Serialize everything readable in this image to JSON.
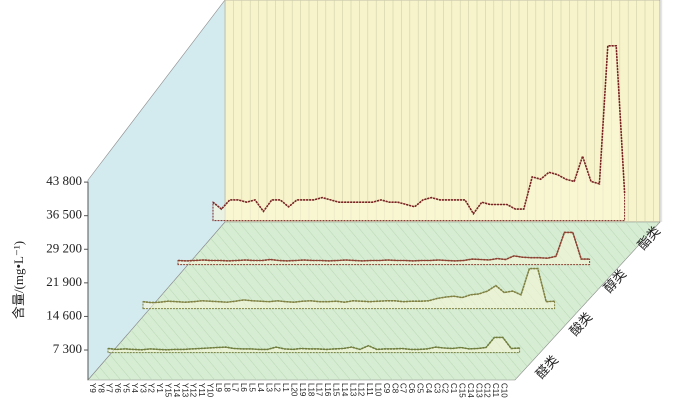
{
  "chart_data": {
    "type": "line3d",
    "ylabel": "含量/(mg•L⁻¹)",
    "ylim": [
      0,
      43800
    ],
    "yticks": [
      {
        "value": 7300,
        "label": "7 300"
      },
      {
        "value": 14600,
        "label": "14 600"
      },
      {
        "value": 21900,
        "label": "21 900"
      },
      {
        "value": 29200,
        "label": "29 200"
      },
      {
        "value": 36500,
        "label": "36 500"
      },
      {
        "value": 43800,
        "label": "43 800"
      }
    ],
    "categories": [
      "Y9",
      "Y8",
      "Y7",
      "Y6",
      "Y5",
      "Y4",
      "Y3",
      "Y2",
      "Y1",
      "Y15",
      "Y14",
      "Y13",
      "Y12",
      "Y11",
      "Y10",
      "L9",
      "L8",
      "L7",
      "L6",
      "L5",
      "L4",
      "L3",
      "L2",
      "L1",
      "L20",
      "L19",
      "L18",
      "L17",
      "L16",
      "L15",
      "L14",
      "L13",
      "L12",
      "L11",
      "L10",
      "C9",
      "C8",
      "C7",
      "C6",
      "C5",
      "C4",
      "C3",
      "C2",
      "C1",
      "C15",
      "C14",
      "C13",
      "C12",
      "C11",
      "C10"
    ],
    "series": [
      {
        "name": "醛类",
        "color": "#6f7d3c",
        "values": [
          900,
          700,
          800,
          700,
          600,
          800,
          700,
          600,
          700,
          700,
          800,
          900,
          1000,
          1100,
          1200,
          900,
          800,
          800,
          700,
          700,
          1200,
          800,
          700,
          900,
          800,
          800,
          700,
          800,
          900,
          1200,
          700,
          1500,
          700,
          800,
          800,
          900,
          700,
          700,
          800,
          1200,
          1000,
          900,
          1100,
          800,
          900,
          1100,
          3300,
          3300,
          900,
          1000
        ]
      },
      {
        "name": "酸类",
        "color": "#7f8040",
        "values": [
          1500,
          1300,
          1400,
          1600,
          1500,
          1400,
          1500,
          1700,
          1600,
          1500,
          1400,
          1600,
          1900,
          1700,
          1600,
          1500,
          1700,
          1500,
          1400,
          1600,
          1700,
          1500,
          1500,
          1600,
          1400,
          1700,
          1600,
          1500,
          1600,
          1700,
          1700,
          1500,
          1600,
          1600,
          1700,
          2200,
          2500,
          2700,
          2400,
          3000,
          3200,
          3800,
          5000,
          3500,
          3800,
          3000,
          8700,
          8700,
          1500,
          1600
        ]
      },
      {
        "name": "醇类",
        "color": "#8b4030",
        "values": [
          900,
          800,
          900,
          1000,
          900,
          900,
          800,
          900,
          1000,
          900,
          900,
          1100,
          900,
          800,
          900,
          1000,
          900,
          900,
          800,
          900,
          1000,
          900,
          800,
          900,
          900,
          1000,
          900,
          900,
          800,
          900,
          900,
          1000,
          900,
          800,
          900,
          1200,
          1100,
          1000,
          1300,
          1100,
          1900,
          1600,
          1500,
          1500,
          1400,
          1800,
          7000,
          7000,
          1200,
          1200
        ]
      },
      {
        "name": "酯类",
        "color": "#7a2424",
        "values": [
          4000,
          2500,
          4500,
          4500,
          4000,
          4500,
          2000,
          4500,
          4500,
          3000,
          4500,
          4500,
          4500,
          5000,
          4500,
          4000,
          4000,
          4000,
          4000,
          4000,
          4500,
          4000,
          4000,
          3500,
          3000,
          4500,
          5000,
          4500,
          4500,
          4500,
          4500,
          1500,
          4000,
          3500,
          3500,
          3500,
          2500,
          2500,
          9500,
          9000,
          10500,
          10000,
          9000,
          8500,
          14000,
          8500,
          8000,
          38000,
          38000,
          6000
        ]
      }
    ]
  }
}
